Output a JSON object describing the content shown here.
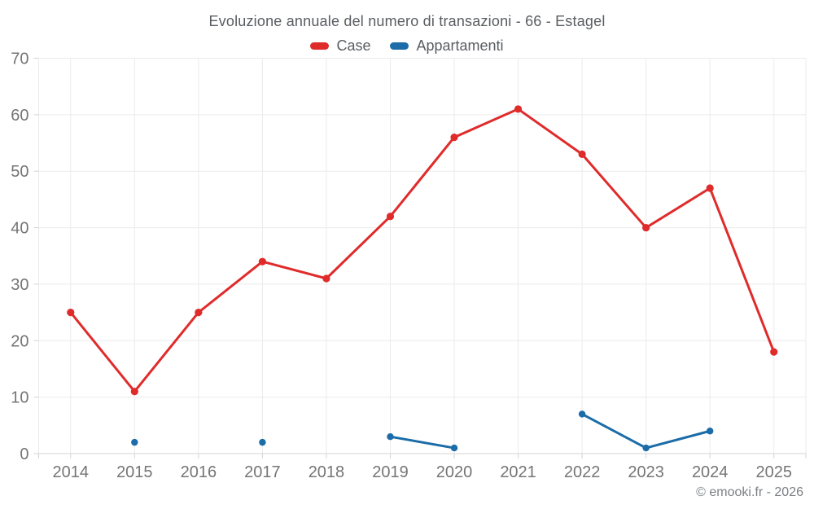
{
  "chart_data": {
    "type": "line",
    "title": "Evoluzione annuale del numero di transazioni - 66 - Estagel",
    "categories": [
      "2014",
      "2015",
      "2016",
      "2017",
      "2018",
      "2019",
      "2020",
      "2021",
      "2022",
      "2023",
      "2024",
      "2025"
    ],
    "series": [
      {
        "name": "Case",
        "color": "#e02b2b",
        "values": [
          25,
          11,
          25,
          34,
          31,
          42,
          56,
          61,
          53,
          40,
          47,
          18
        ]
      },
      {
        "name": "Appartamenti",
        "color": "#1b6ca8",
        "values": [
          null,
          2,
          null,
          2,
          null,
          3,
          1,
          null,
          7,
          1,
          4,
          null
        ]
      }
    ],
    "ylim": [
      0,
      70
    ],
    "yticks": [
      0,
      10,
      20,
      30,
      40,
      50,
      60,
      70
    ],
    "xlabel": "",
    "ylabel": "",
    "grid": true,
    "legend_position": "top"
  },
  "footer": {
    "attribution": "© emooki.fr - 2026"
  }
}
